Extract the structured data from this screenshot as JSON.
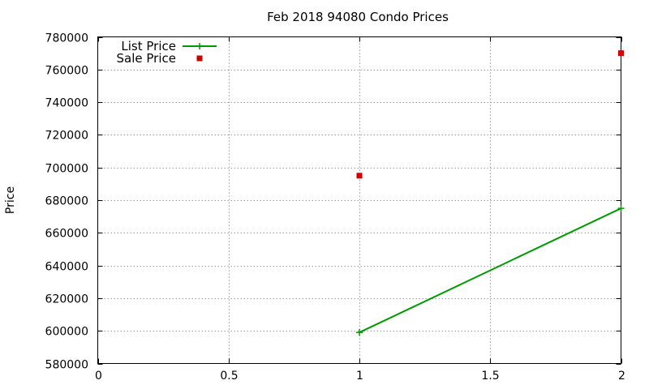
{
  "chart_data": {
    "type": "line",
    "title": "Feb 2018 94080 Condo Prices",
    "xlabel": "",
    "ylabel": "Price",
    "xlim": [
      0,
      2
    ],
    "ylim": [
      580000,
      780000
    ],
    "x_ticks": [
      0,
      0.5,
      1,
      1.5,
      2
    ],
    "x_tick_labels": [
      "0",
      "0.5",
      "1",
      "1.5",
      "2"
    ],
    "y_ticks": [
      580000,
      600000,
      620000,
      640000,
      660000,
      680000,
      700000,
      720000,
      740000,
      760000,
      780000
    ],
    "y_tick_labels": [
      "580000",
      "600000",
      "620000",
      "640000",
      "660000",
      "680000",
      "700000",
      "720000",
      "740000",
      "760000",
      "780000"
    ],
    "grid": true,
    "legend_position": "top-left",
    "series": [
      {
        "name": "List Price",
        "style": "linespoints",
        "marker": "plus",
        "color": "#009900",
        "x": [
          1,
          2
        ],
        "y": [
          599000,
          675000
        ]
      },
      {
        "name": "Sale Price",
        "style": "points",
        "marker": "square",
        "color": "#cc0000",
        "x": [
          1,
          2
        ],
        "y": [
          695000,
          770000
        ]
      }
    ]
  }
}
